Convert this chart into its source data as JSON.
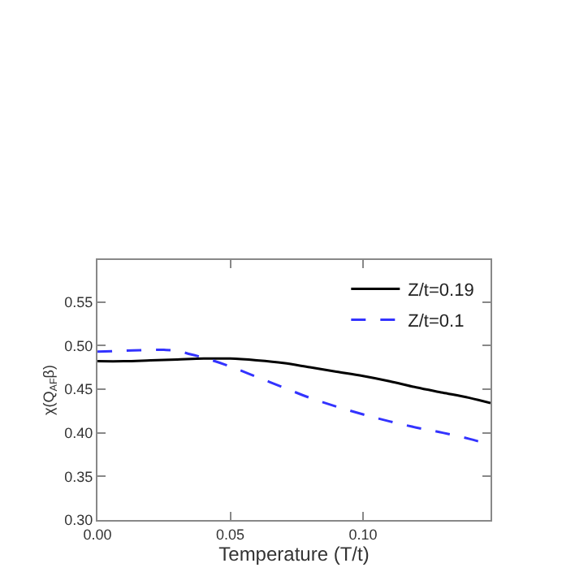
{
  "chart_data": {
    "type": "line",
    "xlabel": "Temperature (T/t)",
    "ylabel": "χ(Q$_{AF}$β)",
    "xlim": [
      0,
      0.148
    ],
    "ylim": [
      0.3,
      0.598
    ],
    "xticks": [
      {
        "value": 0,
        "label": "0.00"
      },
      0.05,
      {
        "value": 0.1,
        "label": "0.10"
      }
    ],
    "yticks": [
      {
        "value": 0.3,
        "label": "0.30"
      },
      0.35,
      {
        "value": 0.4,
        "label": "0.40"
      },
      0.45,
      {
        "value": 0.5,
        "label": "0.50"
      },
      0.55
    ],
    "legend": "top right",
    "marker": "none",
    "series": [
      {
        "name": "Z/t=0.19",
        "color": "#000000",
        "line_style": "solid",
        "x": [
          0,
          0.01,
          0.02,
          0.03,
          0.04,
          0.05,
          0.06,
          0.07,
          0.08,
          0.09,
          0.1,
          0.11,
          0.12,
          0.13,
          0.14,
          0.148
        ],
        "values": [
          0.482,
          0.482,
          0.483,
          0.484,
          0.485,
          0.485,
          0.483,
          0.48,
          0.475,
          0.47,
          0.465,
          0.459,
          0.452,
          0.446,
          0.44,
          0.434
        ]
      },
      {
        "name": "Z/t=0.1",
        "color": "#3333ff",
        "line_style": "dashed",
        "x": [
          0,
          0.01,
          0.02,
          0.025,
          0.03,
          0.035,
          0.04,
          0.05,
          0.06,
          0.07,
          0.08,
          0.09,
          0.1,
          0.11,
          0.12,
          0.13,
          0.14,
          0.148
        ],
        "values": [
          0.493,
          0.494,
          0.495,
          0.495,
          0.494,
          0.49,
          0.486,
          0.476,
          0.464,
          0.452,
          0.44,
          0.43,
          0.421,
          0.413,
          0.406,
          0.4,
          0.393,
          0.386
        ]
      }
    ]
  }
}
